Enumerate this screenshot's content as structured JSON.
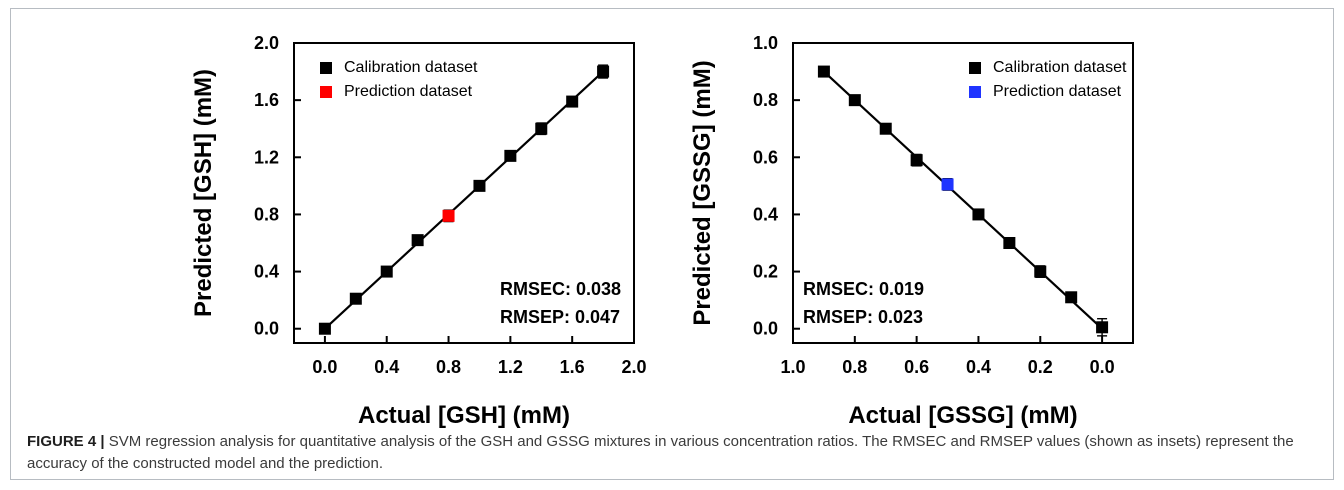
{
  "figure": {
    "label": "FIGURE 4 |",
    "caption": "SVM regression analysis for quantitative analysis of the GSH and GSSG mixtures in various concentration ratios. The RMSEC and RMSEP values (shown as insets) represent the accuracy of the constructed model and the prediction."
  },
  "chart_data": [
    {
      "type": "scatter",
      "xlabel": "Actual [GSH] (mM)",
      "ylabel": "Predicted [GSH] (mM)",
      "xlim": [
        -0.2,
        2.0
      ],
      "ylim": [
        -0.1,
        2.0
      ],
      "x_reversed": false,
      "xticks": [
        "0.0",
        "0.4",
        "0.8",
        "1.2",
        "1.6",
        "2.0"
      ],
      "xtick_values": [
        0.0,
        0.4,
        0.8,
        1.2,
        1.6,
        2.0
      ],
      "yticks": [
        "0.0",
        "0.4",
        "0.8",
        "1.2",
        "1.6",
        "2.0"
      ],
      "ytick_values": [
        0.0,
        0.4,
        0.8,
        1.2,
        1.6,
        2.0
      ],
      "legend_position": "top-left",
      "series": [
        {
          "name": "Calibration dataset",
          "color": "#000000",
          "x": [
            0.0,
            0.2,
            0.4,
            0.6,
            1.0,
            1.2,
            1.4,
            1.6,
            1.8
          ],
          "y": [
            0.0,
            0.21,
            0.4,
            0.62,
            1.0,
            1.21,
            1.4,
            1.59,
            1.8
          ],
          "error": [
            0.01,
            0.015,
            0.015,
            0.03,
            0.015,
            0.015,
            0.04,
            0.02,
            0.045
          ]
        },
        {
          "name": "Prediction dataset",
          "color": "#ff0000",
          "x": [
            0.8
          ],
          "y": [
            0.79
          ],
          "error": [
            0.04
          ]
        }
      ],
      "fit_line": {
        "x": [
          0.0,
          1.8
        ],
        "y": [
          0.0,
          1.8
        ],
        "color": "#000000"
      },
      "insets": [
        "RMSEC: 0.038",
        "RMSEP: 0.047"
      ],
      "inset_position": "bottom-right"
    },
    {
      "type": "scatter",
      "xlabel": "Actual [GSSG] (mM)",
      "ylabel": "Predicted [GSSG] (mM)",
      "xlim": [
        1.0,
        -0.1
      ],
      "ylim": [
        -0.05,
        1.0
      ],
      "x_reversed": true,
      "xticks": [
        "1.0",
        "0.8",
        "0.6",
        "0.4",
        "0.2",
        "0.0"
      ],
      "xtick_values": [
        1.0,
        0.8,
        0.6,
        0.4,
        0.2,
        0.0
      ],
      "yticks": [
        "0.0",
        "0.2",
        "0.4",
        "0.6",
        "0.8",
        "1.0"
      ],
      "ytick_values": [
        0.0,
        0.2,
        0.4,
        0.6,
        0.8,
        1.0
      ],
      "legend_position": "top-right",
      "series": [
        {
          "name": "Calibration dataset",
          "color": "#000000",
          "x": [
            0.9,
            0.8,
            0.7,
            0.6,
            0.4,
            0.3,
            0.2,
            0.1,
            0.0
          ],
          "y": [
            0.9,
            0.8,
            0.7,
            0.59,
            0.4,
            0.3,
            0.2,
            0.11,
            0.005
          ],
          "error": [
            0.01,
            0.01,
            0.01,
            0.02,
            0.01,
            0.01,
            0.02,
            0.015,
            0.03
          ]
        },
        {
          "name": "Prediction dataset",
          "color": "#1f34ff",
          "x": [
            0.5
          ],
          "y": [
            0.505
          ],
          "error": [
            0.02
          ]
        }
      ],
      "fit_line": {
        "x": [
          0.9,
          0.0
        ],
        "y": [
          0.9,
          0.0
        ],
        "color": "#000000"
      },
      "insets": [
        "RMSEC: 0.019",
        "RMSEP: 0.023"
      ],
      "inset_position": "bottom-left"
    }
  ]
}
